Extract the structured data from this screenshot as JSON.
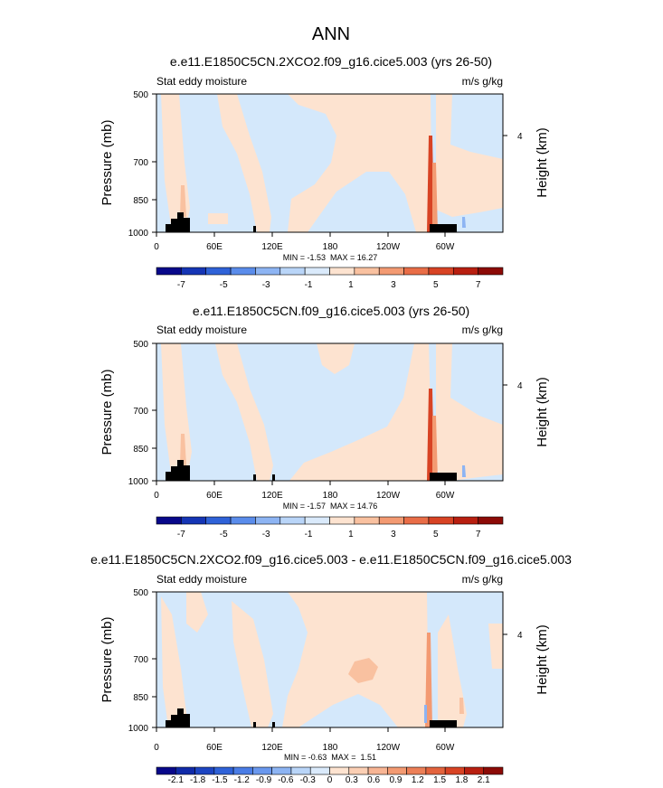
{
  "figure": {
    "title": "ANN"
  },
  "chart_data": [
    {
      "type": "heatmap",
      "title": "e.e11.E1850C5CN.2XCO2.f09_g16.cice5.003 (yrs 26-50)",
      "left_label": "Stat eddy moisture",
      "right_label": "m/s g/kg",
      "ylabel": "Pressure (mb)",
      "ylabel_right": "Height (km)",
      "y_ticks": [
        "500",
        "700",
        "850",
        "1000"
      ],
      "y_right_ticks": [
        "4"
      ],
      "x_ticks": [
        "0",
        "60E",
        "120E",
        "180",
        "120W",
        "60W"
      ],
      "xlim": [
        0,
        360
      ],
      "ylim": [
        1000,
        500
      ],
      "stats": "MIN = -1.53  MAX = 16.27",
      "colorbar_labels": [
        "-7",
        "-5",
        "-3",
        "-1",
        "1",
        "3",
        "5",
        "7"
      ],
      "colorbar_colors": [
        "#08088a",
        "#1535b5",
        "#2f62d8",
        "#5a8ceb",
        "#8db4f3",
        "#b9d5f8",
        "#daeafb",
        "#fde3d0",
        "#f9c1a0",
        "#f39a72",
        "#e96d47",
        "#d84324",
        "#b81f10",
        "#8c0a06"
      ]
    },
    {
      "type": "heatmap",
      "title": "e.e11.E1850C5CN.f09_g16.cice5.003 (yrs 26-50)",
      "left_label": "Stat eddy moisture",
      "right_label": "m/s g/kg",
      "ylabel": "Pressure (mb)",
      "ylabel_right": "Height (km)",
      "y_ticks": [
        "500",
        "700",
        "850",
        "1000"
      ],
      "y_right_ticks": [
        "4"
      ],
      "x_ticks": [
        "0",
        "60E",
        "120E",
        "180",
        "120W",
        "60W"
      ],
      "xlim": [
        0,
        360
      ],
      "ylim": [
        1000,
        500
      ],
      "stats": "MIN = -1.57  MAX = 14.76",
      "colorbar_labels": [
        "-7",
        "-5",
        "-3",
        "-1",
        "1",
        "3",
        "5",
        "7"
      ],
      "colorbar_colors": [
        "#08088a",
        "#1535b5",
        "#2f62d8",
        "#5a8ceb",
        "#8db4f3",
        "#b9d5f8",
        "#daeafb",
        "#fde3d0",
        "#f9c1a0",
        "#f39a72",
        "#e96d47",
        "#d84324",
        "#b81f10",
        "#8c0a06"
      ]
    },
    {
      "type": "heatmap",
      "title": "e.e11.E1850C5CN.2XCO2.f09_g16.cice5.003 - e.e11.E1850C5CN.f09_g16.cice5.003",
      "left_label": "Stat eddy moisture",
      "right_label": "m/s g/kg",
      "ylabel": "Pressure (mb)",
      "ylabel_right": "Height (km)",
      "y_ticks": [
        "500",
        "700",
        "850",
        "1000"
      ],
      "y_right_ticks": [
        "4"
      ],
      "x_ticks": [
        "0",
        "60E",
        "120E",
        "180",
        "120W",
        "60W"
      ],
      "xlim": [
        0,
        360
      ],
      "ylim": [
        1000,
        500
      ],
      "stats": "MIN = -0.63  MAX =  1.51",
      "colorbar_labels": [
        "-2.1",
        "-1.8",
        "-1.5",
        "-1.2",
        "-0.9",
        "-0.6",
        "-0.3",
        "0",
        "0.3",
        "0.6",
        "0.9",
        "1.2",
        "1.5",
        "1.8",
        "2.1"
      ],
      "colorbar_colors": [
        "#08088a",
        "#102aa8",
        "#1d45c2",
        "#2f62d8",
        "#4a7de6",
        "#6a98ee",
        "#8db4f3",
        "#b9d5f8",
        "#daeafb",
        "#fde3d0",
        "#fbcfb4",
        "#f8b594",
        "#f39a72",
        "#ec7f57",
        "#e3633d",
        "#d84324",
        "#b81f10",
        "#8c0a06"
      ]
    }
  ]
}
